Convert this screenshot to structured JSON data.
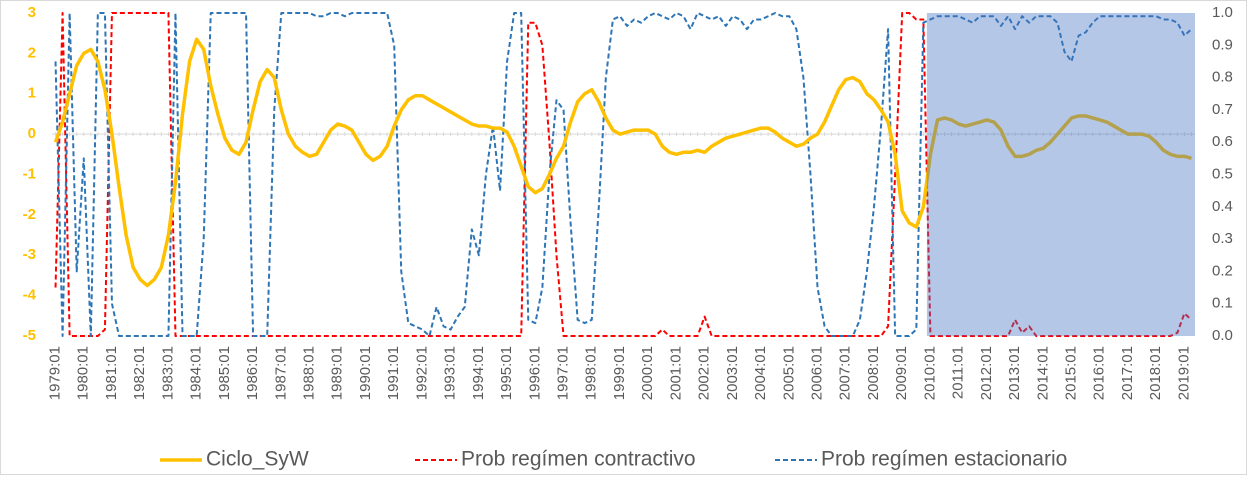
{
  "chart_data": {
    "type": "line",
    "categories": [
      "1979:01",
      null,
      null,
      null,
      "1980:01",
      null,
      null,
      null,
      "1981:01",
      null,
      null,
      null,
      "1982:01",
      null,
      null,
      null,
      "1983:01",
      null,
      null,
      null,
      "1984:01",
      null,
      null,
      null,
      "1985:01",
      null,
      null,
      null,
      "1986:01",
      null,
      null,
      null,
      "1987:01",
      null,
      null,
      null,
      "1988:01",
      null,
      null,
      null,
      "1989:01",
      null,
      null,
      null,
      "1990:01",
      null,
      null,
      null,
      "1991:01",
      null,
      null,
      null,
      "1992:01",
      null,
      null,
      null,
      "1993:01",
      null,
      null,
      null,
      "1994:01",
      null,
      null,
      null,
      "1995:01",
      null,
      null,
      null,
      "1996:01",
      null,
      null,
      null,
      "1997:01",
      null,
      null,
      null,
      "1998:01",
      null,
      null,
      null,
      "1999:01",
      null,
      null,
      null,
      "2000:01",
      null,
      null,
      null,
      "2001:01",
      null,
      null,
      null,
      "2002:01",
      null,
      null,
      null,
      "2003:01",
      null,
      null,
      null,
      "2004:01",
      null,
      null,
      null,
      "2005:01",
      null,
      null,
      null,
      "2006:01",
      null,
      null,
      null,
      "2007:01",
      null,
      null,
      null,
      "2008:01",
      null,
      null,
      null,
      "2009:01",
      null,
      null,
      null,
      "2010:01",
      null,
      null,
      null,
      "2011:01",
      null,
      null,
      null,
      "2012:01",
      null,
      null,
      null,
      "2013:01",
      null,
      null,
      null,
      "2014:01",
      null,
      null,
      null,
      "2015:01",
      null,
      null,
      null,
      "2016:01",
      null,
      null,
      null,
      "2017:01",
      null,
      null,
      null,
      "2018:01",
      null,
      null,
      null,
      "2019:01",
      null
    ],
    "series": [
      {
        "name": "Ciclo_SyW",
        "color": "#ffc000",
        "style": "solid",
        "axis": "y",
        "values": [
          -0.2,
          0.3,
          1.0,
          1.7,
          2.0,
          2.1,
          1.8,
          1.1,
          0.0,
          -1.3,
          -2.5,
          -3.3,
          -3.6,
          -3.75,
          -3.6,
          -3.3,
          -2.5,
          -1.2,
          0.5,
          1.8,
          2.35,
          2.1,
          1.2,
          0.5,
          -0.1,
          -0.4,
          -0.5,
          -0.2,
          0.6,
          1.3,
          1.6,
          1.4,
          0.6,
          0.0,
          -0.3,
          -0.45,
          -0.55,
          -0.5,
          -0.2,
          0.1,
          0.25,
          0.2,
          0.1,
          -0.2,
          -0.5,
          -0.65,
          -0.55,
          -0.3,
          0.2,
          0.6,
          0.85,
          0.95,
          0.95,
          0.85,
          0.75,
          0.65,
          0.55,
          0.45,
          0.35,
          0.25,
          0.2,
          0.2,
          0.15,
          0.15,
          0.05,
          -0.3,
          -0.8,
          -1.3,
          -1.45,
          -1.35,
          -1.0,
          -0.6,
          -0.3,
          0.3,
          0.8,
          1.0,
          1.1,
          0.8,
          0.4,
          0.1,
          0.0,
          0.05,
          0.1,
          0.1,
          0.1,
          0.0,
          -0.3,
          -0.45,
          -0.5,
          -0.45,
          -0.45,
          -0.4,
          -0.45,
          -0.3,
          -0.2,
          -0.1,
          -0.05,
          0.0,
          0.05,
          0.1,
          0.15,
          0.15,
          0.05,
          -0.1,
          -0.2,
          -0.3,
          -0.25,
          -0.1,
          0.0,
          0.3,
          0.7,
          1.1,
          1.35,
          1.4,
          1.3,
          1.0,
          0.85,
          0.6,
          0.3,
          -0.5,
          -1.9,
          -2.2,
          -2.3,
          -1.8,
          -0.5,
          0.35,
          0.4,
          0.35,
          0.25,
          0.2,
          0.25,
          0.3,
          0.35,
          0.3,
          0.1,
          -0.3,
          -0.55,
          -0.55,
          -0.5,
          -0.4,
          -0.35,
          -0.2,
          0.0,
          0.2,
          0.4,
          0.45,
          0.45,
          0.4,
          0.35,
          0.3,
          0.2,
          0.1,
          0.0,
          0.0,
          0.0,
          -0.05,
          -0.2,
          -0.4,
          -0.5,
          -0.55,
          -0.55,
          -0.6
        ]
      },
      {
        "name": "Prob regímen contractivo",
        "color": "#ff0000",
        "style": "dashed",
        "axis": "y2",
        "values": [
          0.15,
          1.0,
          0.0,
          0.0,
          0.0,
          0.0,
          0.0,
          0.02,
          1.0,
          1.0,
          1.0,
          1.0,
          1.0,
          1.0,
          1.0,
          1.0,
          1.0,
          0.0,
          0.0,
          0.0,
          0,
          0,
          0,
          0,
          0,
          0,
          0,
          0,
          0,
          0,
          0,
          0,
          0,
          0,
          0,
          0,
          0,
          0,
          0,
          0,
          0,
          0,
          0,
          0,
          0,
          0,
          0,
          0,
          0,
          0,
          0,
          0,
          0,
          0,
          0,
          0,
          0,
          0,
          0,
          0,
          0,
          0,
          0,
          0,
          0,
          0,
          0,
          0.97,
          0.97,
          0.9,
          0.6,
          0.25,
          0.0,
          0,
          0,
          0,
          0,
          0,
          0,
          0,
          0,
          0,
          0,
          0,
          0,
          0,
          0.02,
          0,
          0,
          0,
          0,
          0,
          0.06,
          0,
          0,
          0,
          0,
          0,
          0,
          0,
          0,
          0,
          0,
          0,
          0,
          0,
          0,
          0,
          0,
          0,
          0,
          0,
          0,
          0,
          0,
          0,
          0,
          0,
          0.03,
          0.5,
          1.0,
          1.0,
          0.98,
          0.98,
          0.0,
          0,
          0,
          0,
          0,
          0,
          0,
          0,
          0,
          0,
          0,
          0,
          0.05,
          0.01,
          0.03,
          0.0,
          0,
          0,
          0,
          0,
          0,
          0,
          0,
          0,
          0,
          0,
          0,
          0,
          0,
          0,
          0,
          0,
          0,
          0,
          0,
          0.01,
          0.07,
          0.05
        ]
      },
      {
        "name": "Prob regímen estacionario",
        "color": "#2e75b6",
        "style": "dashed",
        "axis": "y2",
        "values": [
          0.85,
          0.0,
          1.0,
          0.2,
          0.55,
          0.0,
          1.0,
          1.0,
          0.1,
          0.0,
          0.0,
          0.0,
          0.0,
          0.0,
          0.0,
          0.0,
          0.0,
          1.0,
          0.0,
          0.0,
          0.0,
          0.3,
          1.0,
          1.0,
          1.0,
          1.0,
          1.0,
          1.0,
          0.0,
          0.0,
          0.0,
          0.7,
          1.0,
          1.0,
          1.0,
          1.0,
          1.0,
          0.99,
          0.99,
          1.0,
          1.0,
          0.99,
          1.0,
          1.0,
          1.0,
          1.0,
          1.0,
          1.0,
          0.9,
          0.2,
          0.04,
          0.03,
          0.02,
          0.0,
          0.09,
          0.03,
          0.02,
          0.06,
          0.09,
          0.33,
          0.25,
          0.5,
          0.65,
          0.45,
          0.85,
          1.0,
          1.0,
          0.05,
          0.04,
          0.15,
          0.5,
          0.73,
          0.7,
          0.35,
          0.05,
          0.04,
          0.05,
          0.4,
          0.8,
          0.98,
          0.99,
          0.96,
          0.98,
          0.97,
          0.99,
          1.0,
          0.99,
          0.98,
          1.0,
          0.99,
          0.95,
          1.0,
          0.99,
          0.98,
          0.99,
          0.96,
          0.99,
          0.98,
          0.95,
          0.98,
          0.98,
          0.99,
          1.0,
          0.99,
          0.99,
          0.95,
          0.8,
          0.5,
          0.15,
          0.03,
          0.0,
          0.0,
          0.0,
          0.0,
          0.05,
          0.2,
          0.4,
          0.65,
          0.95,
          0.0,
          0.0,
          0.0,
          0.02,
          0.97,
          0.98,
          0.99,
          0.99,
          0.99,
          0.99,
          0.98,
          0.97,
          0.99,
          0.99,
          0.99,
          0.96,
          0.99,
          0.95,
          0.99,
          0.97,
          0.99,
          0.99,
          0.99,
          0.97,
          0.88,
          0.85,
          0.93,
          0.94,
          0.97,
          0.99,
          0.99,
          0.99,
          0.99,
          0.99,
          0.99,
          0.99,
          0.99,
          0.99,
          0.98,
          0.98,
          0.97,
          0.93,
          0.95
        ]
      }
    ],
    "ylim": [
      -5,
      3
    ],
    "yticks": [
      -5,
      -4,
      -3,
      -2,
      -1,
      0,
      1,
      2,
      3
    ],
    "ytick_color": "#ffc000",
    "y2lim": [
      0,
      1
    ],
    "y2ticks": [
      {
        "value": 0,
        "label": "0.0"
      },
      0.1,
      0.2,
      0.3,
      0.4,
      0.5,
      0.6,
      0.7,
      0.8,
      0.9,
      {
        "value": 1,
        "label": "1.0"
      }
    ],
    "highlight": {
      "from": "2010:01",
      "color": "#4472c4"
    },
    "legend": "bottom"
  }
}
